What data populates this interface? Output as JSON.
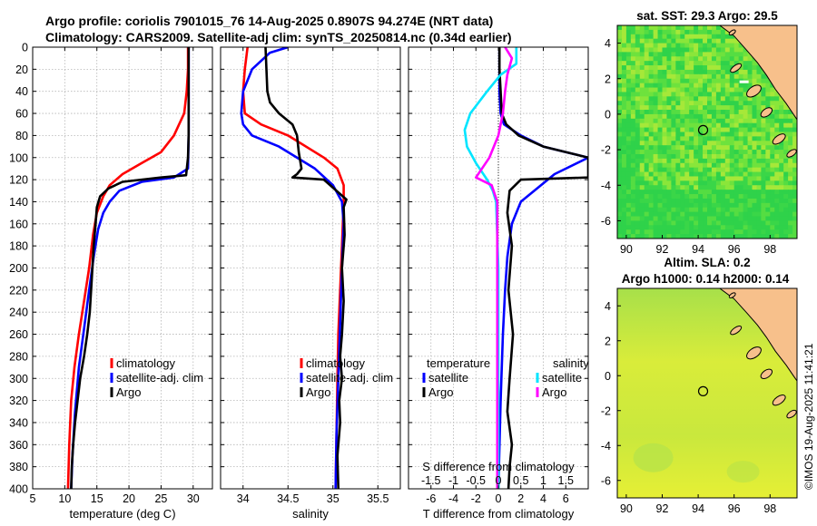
{
  "title": {
    "line1": "Argo profile: coriolis 7901015_76 14-Aug-2025 0.8907S 94.274E (NRT data)",
    "line2": "Climatology: CARS2009. Satellite-adj clim: synTS_20250814.nc (0.34d earlier)"
  },
  "timestamp": "©IMOS 19-Aug-2025 11:41:21",
  "chart_data": [
    {
      "type": "line",
      "name": "temperature-profile",
      "xlabel": "temperature (deg C)",
      "ylabel": "",
      "xlim": [
        5,
        33
      ],
      "ylim": [
        0,
        400
      ],
      "y_reversed": true,
      "xticks": [
        5,
        10,
        15,
        20,
        25,
        30
      ],
      "yticks": [
        0,
        20,
        40,
        60,
        80,
        100,
        120,
        140,
        160,
        180,
        200,
        220,
        240,
        260,
        280,
        300,
        320,
        340,
        360,
        380,
        400
      ],
      "grid": true,
      "legend": [
        "climatology",
        "satellite-adj. clim",
        "Argo"
      ],
      "series": [
        {
          "name": "climatology",
          "color": "#ff0000",
          "x": [
            29.2,
            29.2,
            29.0,
            28.6,
            27.0,
            25.0,
            22.0,
            19.0,
            17.0,
            16.0,
            15.0,
            14.4,
            13.8,
            13.0,
            12.2,
            11.5,
            11.0,
            10.7,
            10.5
          ],
          "y": [
            0,
            20,
            40,
            60,
            80,
            95,
            105,
            115,
            125,
            135,
            150,
            170,
            200,
            230,
            260,
            290,
            320,
            360,
            400
          ]
        },
        {
          "name": "satellite-adj. clim",
          "color": "#0000ff",
          "x": [
            29.3,
            29.3,
            29.3,
            29.3,
            29.3,
            29.2,
            27.0,
            22.0,
            18.5,
            17.0,
            16.0,
            15.2,
            14.5,
            13.8,
            13.0,
            12.2,
            11.6,
            11.2,
            11.0
          ],
          "y": [
            0,
            20,
            40,
            60,
            80,
            110,
            118,
            122,
            130,
            140,
            150,
            165,
            190,
            220,
            255,
            290,
            330,
            370,
            400
          ]
        },
        {
          "name": "Argo",
          "color": "#000000",
          "x": [
            29.3,
            29.3,
            29.3,
            29.3,
            29.3,
            29.2,
            28.9,
            25.0,
            19.0,
            16.8,
            15.5,
            15.0,
            14.8,
            14.5,
            14.2,
            13.9,
            13.5,
            13.0,
            12.4,
            12.0,
            11.6,
            11.3,
            11.1,
            11.0
          ],
          "y": [
            0,
            20,
            40,
            60,
            80,
            100,
            116,
            118,
            122,
            128,
            135,
            145,
            160,
            180,
            210,
            240,
            260,
            280,
            300,
            320,
            340,
            360,
            380,
            400
          ]
        }
      ]
    },
    {
      "type": "line",
      "name": "salinity-profile",
      "xlabel": "salinity",
      "xlim": [
        33.75,
        35.75
      ],
      "ylim": [
        0,
        400
      ],
      "y_reversed": true,
      "xticks": [
        34,
        34.5,
        35,
        35.5
      ],
      "grid": true,
      "legend": [
        "climatology",
        "satellite-adj. clim",
        "Argo"
      ],
      "series": [
        {
          "name": "climatology",
          "color": "#ff0000",
          "x": [
            34.05,
            34.02,
            34.0,
            34.02,
            34.2,
            34.5,
            34.9,
            35.05,
            35.12,
            35.12,
            35.1,
            35.08,
            35.06,
            35.05,
            35.04,
            35.03
          ],
          "y": [
            0,
            20,
            40,
            60,
            70,
            80,
            100,
            110,
            125,
            140,
            180,
            220,
            260,
            300,
            350,
            400
          ]
        },
        {
          "name": "satellite-adj. clim",
          "color": "#0000ff",
          "x": [
            34.5,
            34.3,
            34.1,
            34.0,
            33.98,
            34.0,
            34.1,
            34.4,
            34.8,
            35.0,
            35.1,
            35.12,
            35.1,
            35.08,
            35.06,
            35.04,
            35.03
          ],
          "y": [
            0,
            5,
            20,
            40,
            60,
            70,
            80,
            90,
            110,
            125,
            140,
            160,
            200,
            250,
            300,
            350,
            400
          ]
        },
        {
          "name": "Argo",
          "color": "#000000",
          "x": [
            34.25,
            34.26,
            34.27,
            34.3,
            34.4,
            34.55,
            34.6,
            34.62,
            34.65,
            34.6,
            34.55,
            34.9,
            35.15,
            35.12,
            35.13,
            35.1,
            35.12,
            35.1,
            35.08,
            35.1,
            35.07,
            35.08,
            35.05,
            35.06
          ],
          "y": [
            0,
            20,
            40,
            50,
            60,
            70,
            80,
            95,
            110,
            115,
            118,
            120,
            138,
            145,
            170,
            200,
            230,
            260,
            280,
            300,
            320,
            340,
            370,
            400
          ]
        }
      ]
    },
    {
      "type": "line",
      "name": "difference-profile",
      "xlabel": "T difference from climatology",
      "secondary_xlabel": "S difference from climatology",
      "xlim": [
        -8,
        8
      ],
      "ylim": [
        0,
        400
      ],
      "y_reversed": true,
      "xticks": [
        -6,
        -4,
        -2,
        0,
        2,
        4,
        6
      ],
      "secondary_xticks": [
        "-1.5",
        "-1",
        "-0.5",
        "0",
        "0.5",
        "1",
        "1.5"
      ],
      "grid": true,
      "legend_temperature_title": "temperature",
      "legend_salinity_title": "salinity",
      "legend": [
        "satellite",
        "Argo",
        "satellite",
        "Argo"
      ],
      "series": [
        {
          "name": "temperature satellite",
          "color": "#0000ff",
          "x": [
            0.1,
            0.1,
            0.1,
            0.2,
            0.5,
            2.0,
            4.0,
            6.0,
            8.0,
            5.0,
            2.0,
            1.2,
            0.8,
            0.6,
            0.4,
            0.2,
            0.0
          ],
          "y": [
            0,
            20,
            40,
            60,
            70,
            80,
            90,
            95,
            100,
            115,
            140,
            160,
            190,
            220,
            260,
            320,
            400
          ]
        },
        {
          "name": "temperature Argo",
          "color": "#000000",
          "x": [
            0.1,
            0.1,
            0.2,
            0.3,
            0.7,
            1.8,
            4.0,
            8.0,
            8.0,
            2.0,
            1.0,
            0.8,
            1.2,
            0.9,
            1.3,
            1.0,
            0.8,
            1.2,
            1.0,
            0.9
          ],
          "y": [
            0,
            20,
            40,
            60,
            70,
            80,
            90,
            100,
            118,
            120,
            130,
            150,
            180,
            220,
            260,
            300,
            330,
            360,
            380,
            400
          ]
        },
        {
          "name": "salinity satellite",
          "color": "#00e5ff",
          "x": [
            1.6,
            1.6,
            0.2,
            -1.0,
            -2.5,
            -3.0,
            -2.8,
            -2.0,
            -1.0,
            -0.5,
            -0.2,
            0.0,
            0.0
          ],
          "y": [
            0,
            15,
            25,
            40,
            60,
            75,
            90,
            105,
            120,
            130,
            140,
            200,
            400
          ]
        },
        {
          "name": "salinity Argo",
          "color": "#ff00ff",
          "x": [
            0.6,
            1.2,
            0.8,
            0.6,
            0.4,
            0.0,
            -0.8,
            -2.0,
            -0.6,
            -0.1,
            -0.1,
            -0.1
          ],
          "y": [
            0,
            10,
            25,
            40,
            60,
            80,
            100,
            118,
            125,
            140,
            250,
            400
          ]
        }
      ]
    },
    {
      "type": "heatmap",
      "name": "sst-map",
      "title": "sat. SST: 29.3 Argo: 29.5",
      "xlim": [
        89.5,
        99.5
      ],
      "ylim": [
        -7,
        5
      ],
      "xticks": [
        90,
        92,
        94,
        96,
        98
      ],
      "yticks": [
        -6,
        -4,
        -2,
        0,
        2,
        4
      ],
      "marker": {
        "lon": 94.274,
        "lat": -0.8907
      }
    },
    {
      "type": "heatmap",
      "name": "sla-map",
      "title_line1": "Altim. SLA: 0.2",
      "title_line2": "Argo h1000: 0.14 h2000: 0.14",
      "xlim": [
        89.5,
        99.5
      ],
      "ylim": [
        -7,
        5
      ],
      "xticks": [
        90,
        92,
        94,
        96,
        98
      ],
      "yticks": [
        -6,
        -4,
        -2,
        0,
        2,
        4
      ],
      "marker": {
        "lon": 94.274,
        "lat": -0.8907
      }
    }
  ]
}
